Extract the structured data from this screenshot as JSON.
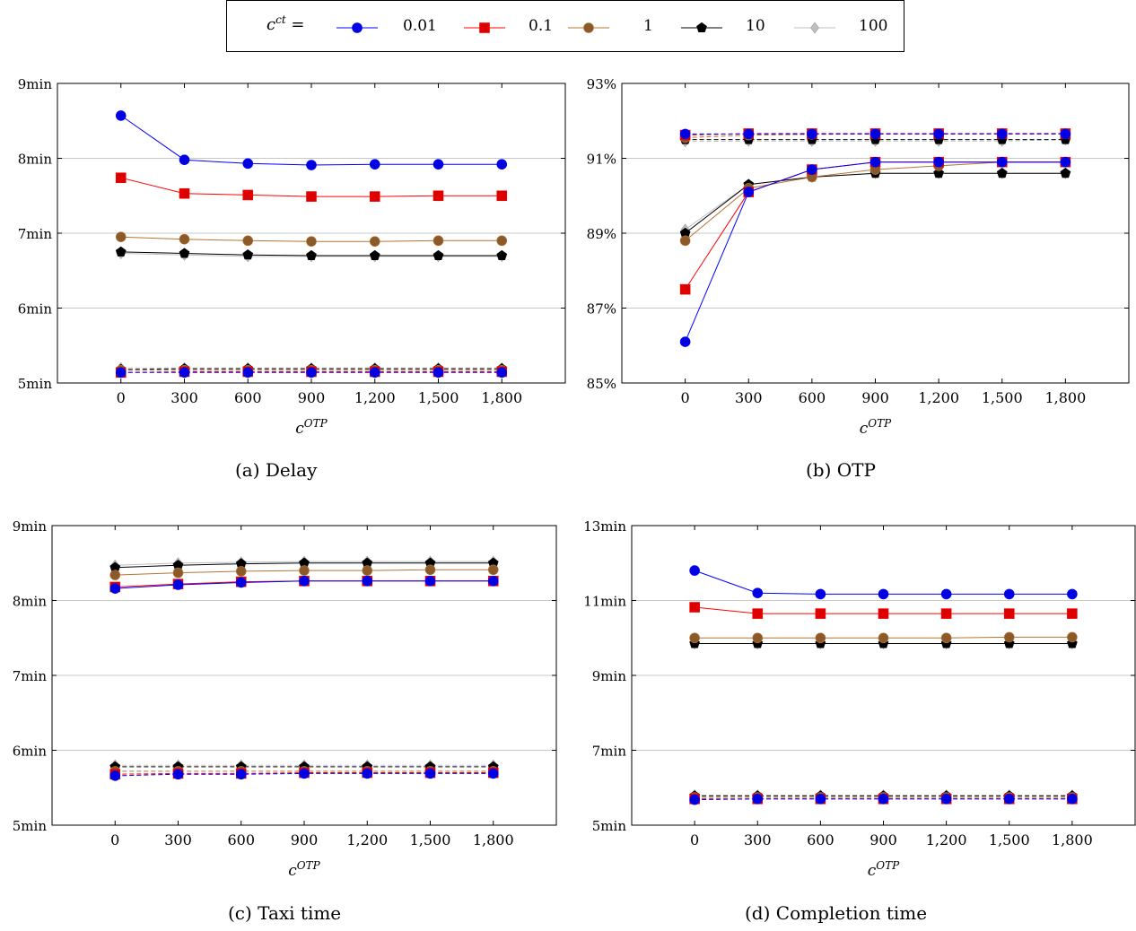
{
  "legend": {
    "symbol": "c",
    "symbol_sup": "ct",
    "equals": "=",
    "items": [
      {
        "label": "0.01",
        "color": "#0000ff",
        "marker": "circle",
        "marker_fill": "#0000e0"
      },
      {
        "label": "0.1",
        "color": "#ff0000",
        "marker": "square",
        "marker_fill": "#dd0000"
      },
      {
        "label": "1",
        "color": "#b87333",
        "marker": "circle",
        "marker_fill": "#8b5a2b"
      },
      {
        "label": "10",
        "color": "#000000",
        "marker": "pentagon",
        "marker_fill": "#000000"
      },
      {
        "label": "100",
        "color": "#bfbfbf",
        "marker": "diamond",
        "marker_fill": "#bfbfbf"
      }
    ]
  },
  "chart_data": [
    {
      "type": "line",
      "caption": "(a) Delay",
      "xlabel_base": "c",
      "xlabel_sup": "OTP",
      "x": [
        0,
        300,
        600,
        900,
        1200,
        1500,
        1800
      ],
      "x_tick_labels": [
        "0",
        "300",
        "600",
        "900",
        "1,200",
        "1,500",
        "1,800"
      ],
      "xlim": [
        -300,
        2100
      ],
      "ylim": [
        5,
        9
      ],
      "y_ticks": [
        5,
        6,
        7,
        8,
        9
      ],
      "y_tick_labels": [
        "5min",
        "6min",
        "7min",
        "8min",
        "9min"
      ],
      "grid": "horizontal",
      "series_solid": [
        [
          8.57,
          7.98,
          7.93,
          7.91,
          7.92,
          7.92,
          7.92
        ],
        [
          7.74,
          7.53,
          7.51,
          7.49,
          7.49,
          7.5,
          7.5
        ],
        [
          6.95,
          6.92,
          6.9,
          6.89,
          6.89,
          6.9,
          6.9
        ],
        [
          6.75,
          6.73,
          6.71,
          6.7,
          6.7,
          6.7,
          6.7
        ],
        [
          6.73,
          6.71,
          6.69,
          6.69,
          6.69,
          6.69,
          6.69
        ]
      ],
      "series_dashed": [
        [
          5.14,
          5.14,
          5.14,
          5.14,
          5.14,
          5.14,
          5.14
        ],
        [
          5.14,
          5.15,
          5.15,
          5.15,
          5.15,
          5.15,
          5.15
        ],
        [
          5.17,
          5.17,
          5.17,
          5.17,
          5.17,
          5.17,
          5.17
        ],
        [
          5.18,
          5.19,
          5.19,
          5.19,
          5.19,
          5.19,
          5.19
        ],
        [
          5.2,
          5.2,
          5.2,
          5.2,
          5.2,
          5.2,
          5.2
        ]
      ]
    },
    {
      "type": "line",
      "caption": "(b) OTP",
      "xlabel_base": "c",
      "xlabel_sup": "OTP",
      "x": [
        0,
        300,
        600,
        900,
        1200,
        1500,
        1800
      ],
      "x_tick_labels": [
        "0",
        "300",
        "600",
        "900",
        "1,200",
        "1,500",
        "1,800"
      ],
      "xlim": [
        -300,
        2100
      ],
      "ylim": [
        85,
        93
      ],
      "y_ticks": [
        85,
        87,
        89,
        91,
        93
      ],
      "y_tick_labels": [
        "85%",
        "87%",
        "89%",
        "91%",
        "93%"
      ],
      "grid": "horizontal",
      "series_solid": [
        [
          86.1,
          90.1,
          90.7,
          90.9,
          90.9,
          90.9,
          90.9
        ],
        [
          87.5,
          90.1,
          90.7,
          90.9,
          90.9,
          90.9,
          90.9
        ],
        [
          88.8,
          90.2,
          90.5,
          90.7,
          90.8,
          90.9,
          90.9
        ],
        [
          89.0,
          90.3,
          90.5,
          90.6,
          90.6,
          90.6,
          90.6
        ],
        [
          89.1,
          90.3,
          90.5,
          90.6,
          90.6,
          90.6,
          90.6
        ]
      ],
      "series_dashed": [
        [
          91.65,
          91.65,
          91.65,
          91.65,
          91.65,
          91.65,
          91.65
        ],
        [
          91.62,
          91.66,
          91.66,
          91.66,
          91.66,
          91.66,
          91.66
        ],
        [
          91.55,
          91.62,
          91.64,
          91.65,
          91.65,
          91.66,
          91.66
        ],
        [
          91.5,
          91.5,
          91.5,
          91.5,
          91.5,
          91.5,
          91.5
        ],
        [
          91.45,
          91.46,
          91.46,
          91.46,
          91.46,
          91.46,
          91.5
        ]
      ]
    },
    {
      "type": "line",
      "caption": "(c) Taxi time",
      "xlabel_base": "c",
      "xlabel_sup": "OTP",
      "x": [
        0,
        300,
        600,
        900,
        1200,
        1500,
        1800
      ],
      "x_tick_labels": [
        "0",
        "300",
        "600",
        "900",
        "1,200",
        "1,500",
        "1,800"
      ],
      "xlim": [
        -300,
        2100
      ],
      "ylim": [
        5,
        9
      ],
      "y_ticks": [
        5,
        6,
        7,
        8,
        9
      ],
      "y_tick_labels": [
        "5min",
        "6min",
        "7min",
        "8min",
        "9min"
      ],
      "grid": "horizontal",
      "series_solid": [
        [
          8.16,
          8.21,
          8.24,
          8.26,
          8.26,
          8.26,
          8.26
        ],
        [
          8.18,
          8.22,
          8.25,
          8.26,
          8.26,
          8.26,
          8.26
        ],
        [
          8.34,
          8.37,
          8.39,
          8.4,
          8.4,
          8.41,
          8.41
        ],
        [
          8.44,
          8.47,
          8.49,
          8.5,
          8.5,
          8.5,
          8.5
        ],
        [
          8.47,
          8.5,
          8.51,
          8.52,
          8.52,
          8.52,
          8.52
        ]
      ],
      "series_dashed": [
        [
          5.66,
          5.68,
          5.68,
          5.69,
          5.69,
          5.69,
          5.69
        ],
        [
          5.68,
          5.69,
          5.69,
          5.7,
          5.7,
          5.7,
          5.7
        ],
        [
          5.72,
          5.72,
          5.72,
          5.72,
          5.72,
          5.72,
          5.72
        ],
        [
          5.78,
          5.78,
          5.78,
          5.78,
          5.78,
          5.78,
          5.78
        ],
        [
          5.8,
          5.8,
          5.8,
          5.8,
          5.8,
          5.8,
          5.8
        ]
      ]
    },
    {
      "type": "line",
      "caption": "(d) Completion time",
      "xlabel_base": "c",
      "xlabel_sup": "OTP",
      "x": [
        0,
        300,
        600,
        900,
        1200,
        1500,
        1800
      ],
      "x_tick_labels": [
        "0",
        "300",
        "600",
        "900",
        "1,200",
        "1,500",
        "1,800"
      ],
      "xlim": [
        -300,
        2100
      ],
      "ylim": [
        5,
        13
      ],
      "y_ticks": [
        5,
        7,
        9,
        11,
        13
      ],
      "y_tick_labels": [
        "5min",
        "7min",
        "9min",
        "11min",
        "13min"
      ],
      "grid": "horizontal",
      "series_solid": [
        [
          11.8,
          11.2,
          11.17,
          11.17,
          11.17,
          11.17,
          11.17
        ],
        [
          10.82,
          10.65,
          10.65,
          10.65,
          10.65,
          10.65,
          10.65
        ],
        [
          10.0,
          10.0,
          10.0,
          10.0,
          10.0,
          10.02,
          10.02
        ],
        [
          9.85,
          9.85,
          9.85,
          9.85,
          9.85,
          9.85,
          9.85
        ],
        [
          9.85,
          9.85,
          9.85,
          9.85,
          9.85,
          9.85,
          9.85
        ]
      ],
      "series_dashed": [
        [
          5.68,
          5.7,
          5.7,
          5.7,
          5.7,
          5.7,
          5.7
        ],
        [
          5.7,
          5.7,
          5.7,
          5.7,
          5.7,
          5.7,
          5.7
        ],
        [
          5.74,
          5.74,
          5.74,
          5.74,
          5.74,
          5.74,
          5.74
        ],
        [
          5.78,
          5.78,
          5.78,
          5.78,
          5.78,
          5.78,
          5.78
        ],
        [
          5.8,
          5.8,
          5.8,
          5.8,
          5.8,
          5.8,
          5.8
        ]
      ]
    }
  ]
}
